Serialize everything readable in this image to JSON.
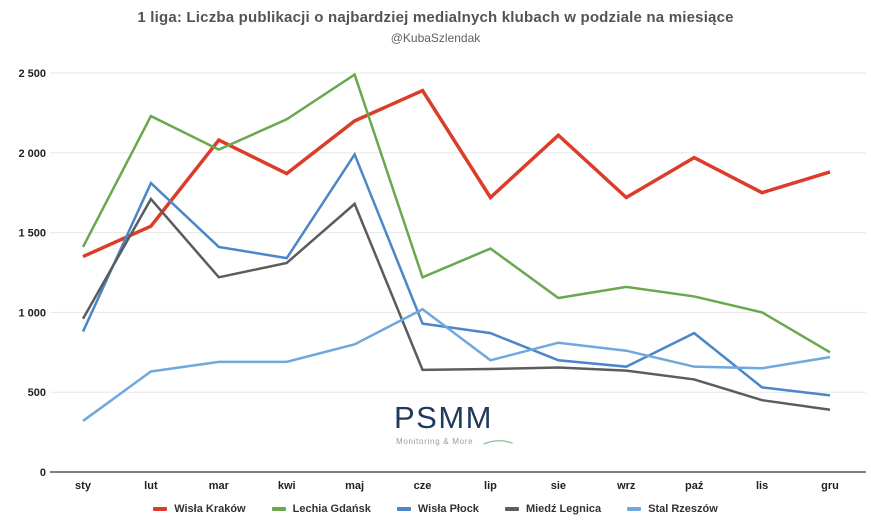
{
  "chart_data": {
    "type": "line",
    "title": "1 liga: Liczba publikacji o najbardziej medialnych klubach w podziale na miesiące",
    "subtitle": "@KubaSzlendak",
    "categories": [
      "sty",
      "lut",
      "mar",
      "kwi",
      "maj",
      "cze",
      "lip",
      "sie",
      "wrz",
      "paź",
      "lis",
      "gru"
    ],
    "ylim": [
      0,
      2500
    ],
    "grid": true,
    "legend_position": "bottom",
    "y_ticks": [
      {
        "value": 0,
        "label": "0"
      },
      {
        "value": 500,
        "label": "500"
      },
      {
        "value": 1000,
        "label": "1 000"
      },
      {
        "value": 1500,
        "label": "1 500"
      },
      {
        "value": 2000,
        "label": "2 000"
      },
      {
        "value": 2500,
        "label": "2 500"
      }
    ],
    "series": [
      {
        "name": "Wisła Kraków",
        "color": "#dc3c2a",
        "line_width": 3.5,
        "values": [
          1350,
          1540,
          2080,
          1870,
          2200,
          2390,
          1720,
          2110,
          1720,
          1970,
          1750,
          1880
        ]
      },
      {
        "name": "Lechia Gdańsk",
        "color": "#6aa84f",
        "line_width": 2.5,
        "values": [
          1410,
          2230,
          2020,
          2210,
          2490,
          1220,
          1400,
          1090,
          1160,
          1100,
          1000,
          750
        ]
      },
      {
        "name": "Wisła Płock",
        "color": "#4a86c8",
        "line_width": 2.5,
        "values": [
          880,
          1810,
          1410,
          1340,
          1990,
          930,
          870,
          700,
          660,
          870,
          530,
          480
        ]
      },
      {
        "name": "Miedź Legnica",
        "color": "#5c5c5c",
        "line_width": 2.5,
        "values": [
          960,
          1710,
          1220,
          1310,
          1680,
          640,
          645,
          655,
          635,
          580,
          450,
          390
        ]
      },
      {
        "name": "Stal Rzeszów",
        "color": "#6fa8dc",
        "line_width": 2.5,
        "values": [
          320,
          630,
          690,
          690,
          800,
          1020,
          700,
          810,
          760,
          660,
          650,
          720
        ]
      }
    ],
    "colors": {
      "grid": "#e8e8e8",
      "axis_line": "#333333",
      "tick_label": "#222222",
      "title": "#535353"
    }
  },
  "logo": {
    "text": "PSMM",
    "tagline": "Monitoring & More"
  }
}
